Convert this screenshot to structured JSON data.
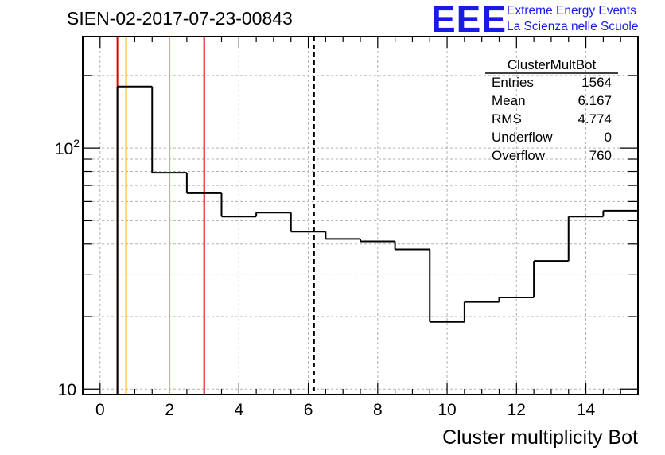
{
  "header": {
    "title": "SIEN-02-2017-07-23-00843",
    "logo_mark": "EEE",
    "logo_line1": "Extreme Energy Events",
    "logo_line2": "La Scienza nelle Scuole",
    "logo_color": "#1a1ae6"
  },
  "chart_data": {
    "type": "histogram",
    "xlabel": "Cluster multiplicity Bot",
    "ylabel": "",
    "xlim": [
      -0.5,
      15.5
    ],
    "ylim": [
      9.5,
      290
    ],
    "yscale": "log",
    "grid": true,
    "x_ticks": [
      "0",
      "2",
      "4",
      "6",
      "8",
      "10",
      "12",
      "14"
    ],
    "y_tick_labels": [
      {
        "base": "10",
        "exp": "",
        "value": 10
      },
      {
        "base": "10",
        "exp": "2",
        "value": 100
      }
    ],
    "bins": [
      {
        "x0": 0.5,
        "x1": 1.5,
        "value": 180
      },
      {
        "x0": 1.5,
        "x1": 2.5,
        "value": 79
      },
      {
        "x0": 2.5,
        "x1": 3.5,
        "value": 65
      },
      {
        "x0": 3.5,
        "x1": 4.5,
        "value": 52
      },
      {
        "x0": 4.5,
        "x1": 5.5,
        "value": 54
      },
      {
        "x0": 5.5,
        "x1": 6.5,
        "value": 45
      },
      {
        "x0": 6.5,
        "x1": 7.5,
        "value": 42
      },
      {
        "x0": 7.5,
        "x1": 8.5,
        "value": 41
      },
      {
        "x0": 8.5,
        "x1": 9.5,
        "value": 38
      },
      {
        "x0": 9.5,
        "x1": 10.5,
        "value": 19
      },
      {
        "x0": 10.5,
        "x1": 11.5,
        "value": 23
      },
      {
        "x0": 11.5,
        "x1": 12.5,
        "value": 24
      },
      {
        "x0": 12.5,
        "x1": 13.5,
        "value": 34
      },
      {
        "x0": 13.5,
        "x1": 14.5,
        "value": 52
      },
      {
        "x0": 14.5,
        "x1": 15.5,
        "value": 55
      }
    ],
    "vertical_lines": [
      {
        "x": 0.5,
        "color": "#e00000",
        "style": "solid"
      },
      {
        "x": 0.75,
        "color": "#ffb400",
        "style": "solid"
      },
      {
        "x": 2.0,
        "color": "#ffb400",
        "style": "solid"
      },
      {
        "x": 3.0,
        "color": "#e00000",
        "style": "solid"
      },
      {
        "x": 6.167,
        "color": "#000000",
        "style": "dashed"
      }
    ],
    "stats_box": {
      "name": "ClusterMultBot",
      "rows": [
        {
          "label": "Entries",
          "value": "1564"
        },
        {
          "label": "Mean",
          "value": "6.167"
        },
        {
          "label": "RMS",
          "value": "4.774"
        },
        {
          "label": "Underflow",
          "value": "0"
        },
        {
          "label": "Overflow",
          "value": "760"
        }
      ]
    }
  }
}
